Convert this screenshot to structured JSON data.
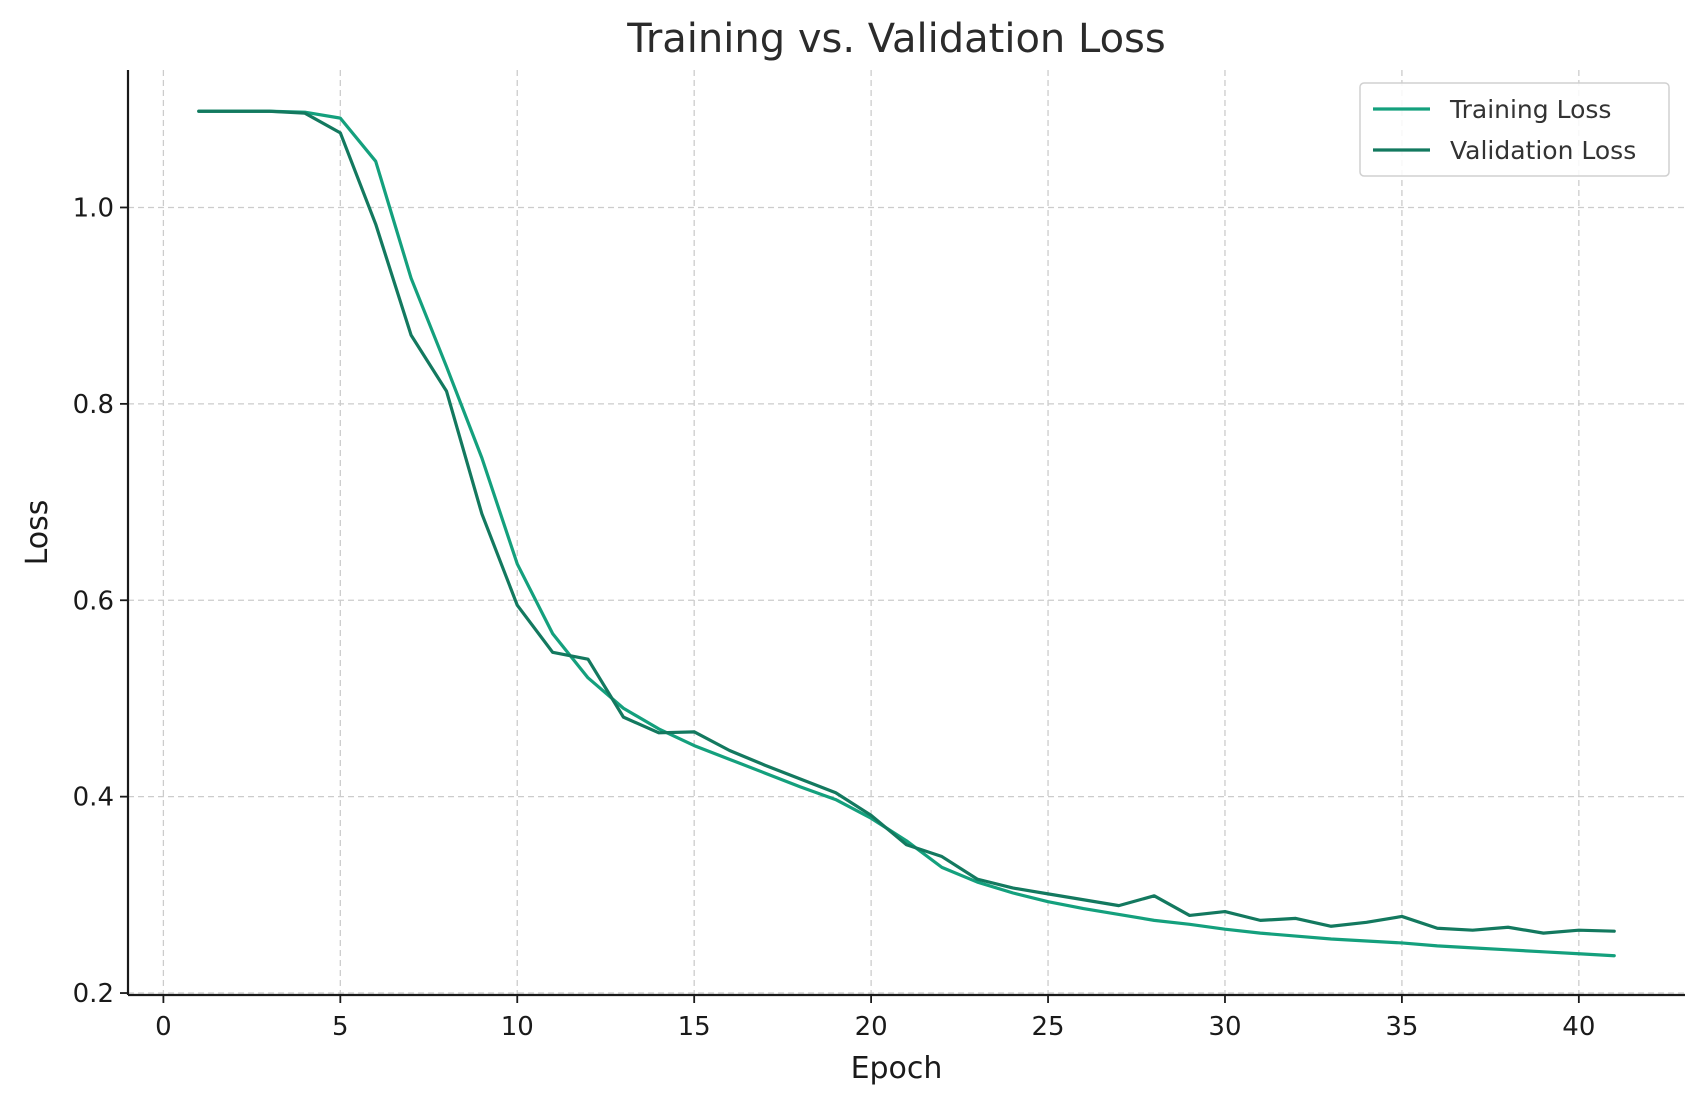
{
  "chart_data": {
    "type": "line",
    "title": "Training vs. Validation Loss",
    "xlabel": "Epoch",
    "ylabel": "Loss",
    "xlim": [
      -1,
      43
    ],
    "ylim": [
      0.198,
      1.14
    ],
    "xticks": [
      0,
      5,
      10,
      15,
      20,
      25,
      30,
      35,
      40
    ],
    "yticks": [
      0.2,
      0.4,
      0.6,
      0.8,
      1.0
    ],
    "ytick_labels": [
      "0.2",
      "0.4",
      "0.6",
      "0.8",
      "1.0"
    ],
    "grid": true,
    "legend_position": "top-right",
    "x": [
      1,
      2,
      3,
      4,
      5,
      6,
      7,
      8,
      9,
      10,
      11,
      12,
      13,
      14,
      15,
      16,
      17,
      18,
      19,
      20,
      21,
      22,
      23,
      24,
      25,
      26,
      27,
      28,
      29,
      30,
      31,
      32,
      33,
      34,
      35,
      36,
      37,
      38,
      39,
      40,
      41
    ],
    "series": [
      {
        "name": "Training Loss",
        "color": "#14a07d",
        "values": [
          1.098,
          1.098,
          1.098,
          1.097,
          1.091,
          1.047,
          0.928,
          0.838,
          0.745,
          0.637,
          0.566,
          0.521,
          0.49,
          0.469,
          0.452,
          0.438,
          0.424,
          0.41,
          0.397,
          0.378,
          0.355,
          0.328,
          0.313,
          0.302,
          0.293,
          0.286,
          0.28,
          0.274,
          0.27,
          0.265,
          0.261,
          0.258,
          0.255,
          0.253,
          0.251,
          0.248,
          0.246,
          0.244,
          0.242,
          0.24,
          0.238
        ]
      },
      {
        "name": "Validation Loss",
        "color": "#13795f",
        "values": [
          1.098,
          1.098,
          1.098,
          1.096,
          1.076,
          0.983,
          0.87,
          0.813,
          0.688,
          0.595,
          0.547,
          0.54,
          0.481,
          0.465,
          0.466,
          0.447,
          0.432,
          0.418,
          0.404,
          0.381,
          0.351,
          0.339,
          0.316,
          0.307,
          0.301,
          0.295,
          0.289,
          0.299,
          0.279,
          0.283,
          0.274,
          0.276,
          0.268,
          0.272,
          0.278,
          0.266,
          0.264,
          0.267,
          0.261,
          0.264,
          0.263
        ]
      }
    ]
  }
}
